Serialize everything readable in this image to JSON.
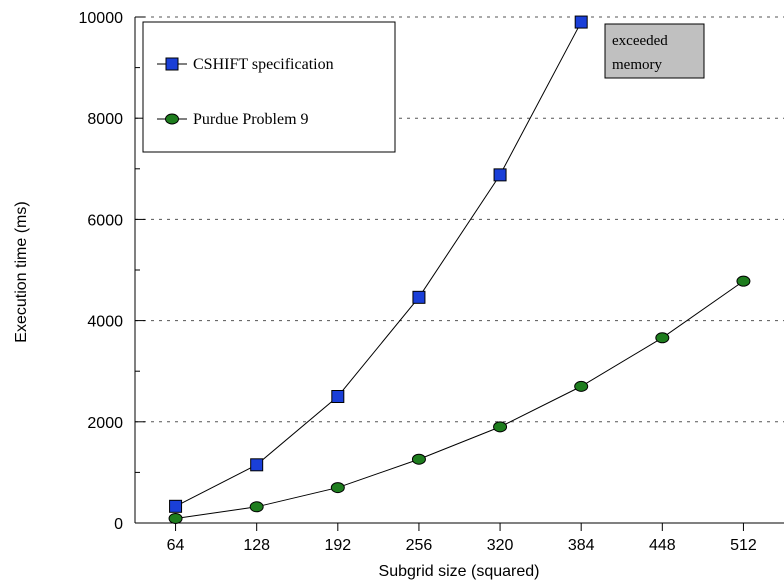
{
  "chart_data": {
    "type": "line",
    "xlabel": "Subgrid size (squared)",
    "ylabel": "Execution time (ms)",
    "x": [
      64,
      128,
      192,
      256,
      320,
      384,
      448,
      512
    ],
    "xlim": [
      32,
      544
    ],
    "ylim": [
      0,
      10000
    ],
    "yticks": [
      0,
      2000,
      4000,
      6000,
      8000,
      10000
    ],
    "grid": "horizontal dashed",
    "legend_position": "top-left",
    "series": [
      {
        "name": "CSHIFT specification",
        "marker": "square",
        "color": "#1a3fd8",
        "x": [
          64,
          128,
          192,
          256,
          320,
          384
        ],
        "values": [
          330,
          1150,
          2500,
          4460,
          6880,
          9900
        ]
      },
      {
        "name": "Purdue Problem 9",
        "marker": "circle",
        "color": "#1e7d1e",
        "x": [
          64,
          128,
          192,
          256,
          320,
          384,
          448,
          512
        ],
        "values": [
          90,
          320,
          700,
          1260,
          1900,
          2700,
          3660,
          4780
        ]
      }
    ],
    "annotation": {
      "lines": [
        "exceeded",
        "memory"
      ],
      "background": "#c0c0c0"
    }
  }
}
